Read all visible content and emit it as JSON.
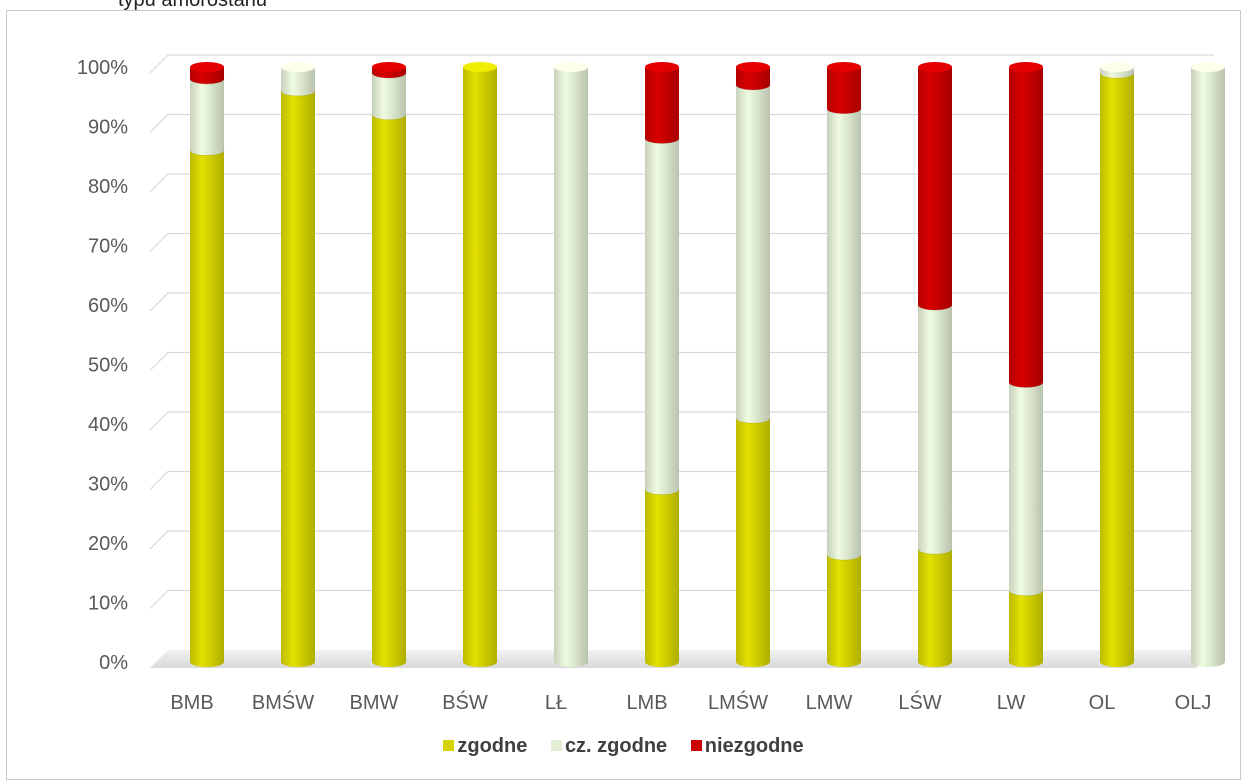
{
  "caption_fragment": "typu amorostanu",
  "chart_data": {
    "type": "bar",
    "stacked": true,
    "percent": true,
    "style": "3d-cylinder",
    "categories": [
      "BMB",
      "BMŚW",
      "BMW",
      "BŚW",
      "LŁ",
      "LMB",
      "LMŚW",
      "LMW",
      "LŚW",
      "LW",
      "OL",
      "OLJ"
    ],
    "series": [
      {
        "name": "zgodne",
        "color": "#d6d400",
        "values": [
          86,
          96,
          92,
          100,
          0,
          29,
          41,
          18,
          19,
          12,
          99,
          0
        ]
      },
      {
        "name": "cz. zgodne",
        "color": "#e2eed4",
        "values": [
          12,
          4,
          7,
          0,
          100,
          59,
          56,
          75,
          41,
          35,
          1,
          100
        ]
      },
      {
        "name": "niezgodne",
        "color": "#cc0000",
        "values": [
          2,
          0,
          1,
          0,
          0,
          12,
          3,
          7,
          40,
          53,
          0,
          0
        ]
      }
    ],
    "yticks": [
      "0%",
      "10%",
      "20%",
      "30%",
      "40%",
      "50%",
      "60%",
      "70%",
      "80%",
      "90%",
      "100%"
    ],
    "ylim": [
      0,
      100
    ],
    "grid": true,
    "legend_position": "bottom"
  }
}
